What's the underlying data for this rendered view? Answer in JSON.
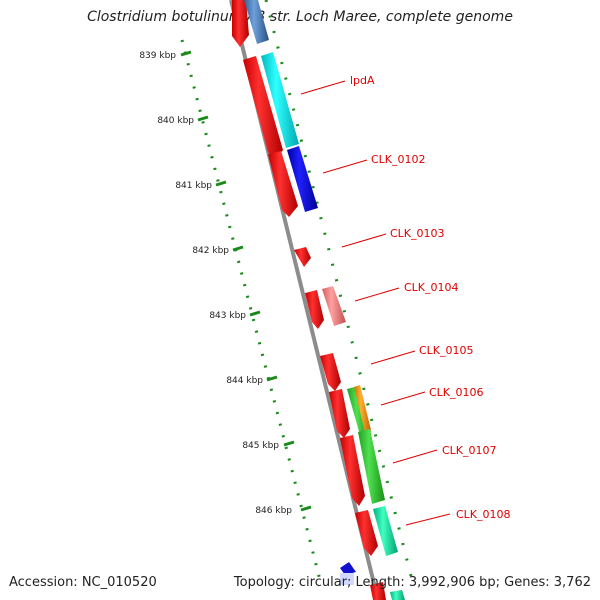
{
  "title": "Clostridium botulinum A3 str. Loch Maree, complete genome",
  "footer": {
    "accession": "Accession: NC_010520",
    "topology": "Topology: circular; Length: 3,992,906 bp; Genes: 3,762"
  },
  "ruler": {
    "unit": "kbp",
    "ticks": [
      {
        "kbp": 839,
        "label": "839 kbp"
      },
      {
        "kbp": 840,
        "label": "840 kbp"
      },
      {
        "kbp": 841,
        "label": "841 kbp"
      },
      {
        "kbp": 842,
        "label": "842 kbp"
      },
      {
        "kbp": 843,
        "label": "843 kbp"
      },
      {
        "kbp": 844,
        "label": "844 kbp"
      },
      {
        "kbp": 845,
        "label": "845 kbp"
      },
      {
        "kbp": 846,
        "label": "846 kbp"
      }
    ]
  },
  "colors": {
    "backbone": "#8c8c8c",
    "gene_red": "#ff0000",
    "label_red": "#e00000",
    "tick_green": "#1a8a1a",
    "cyan": "#00e5e5",
    "blue": "#0000e0",
    "pink": "#f08080",
    "green": "#33cc33",
    "orange": "#ff9900",
    "teal": "#00e0a0",
    "steel": "#4f86c6"
  },
  "gene_labels": [
    "lpdA",
    "CLK_0102",
    "CLK_0103",
    "CLK_0104",
    "CLK_0105",
    "CLK_0106",
    "CLK_0107",
    "CLK_0108"
  ]
}
